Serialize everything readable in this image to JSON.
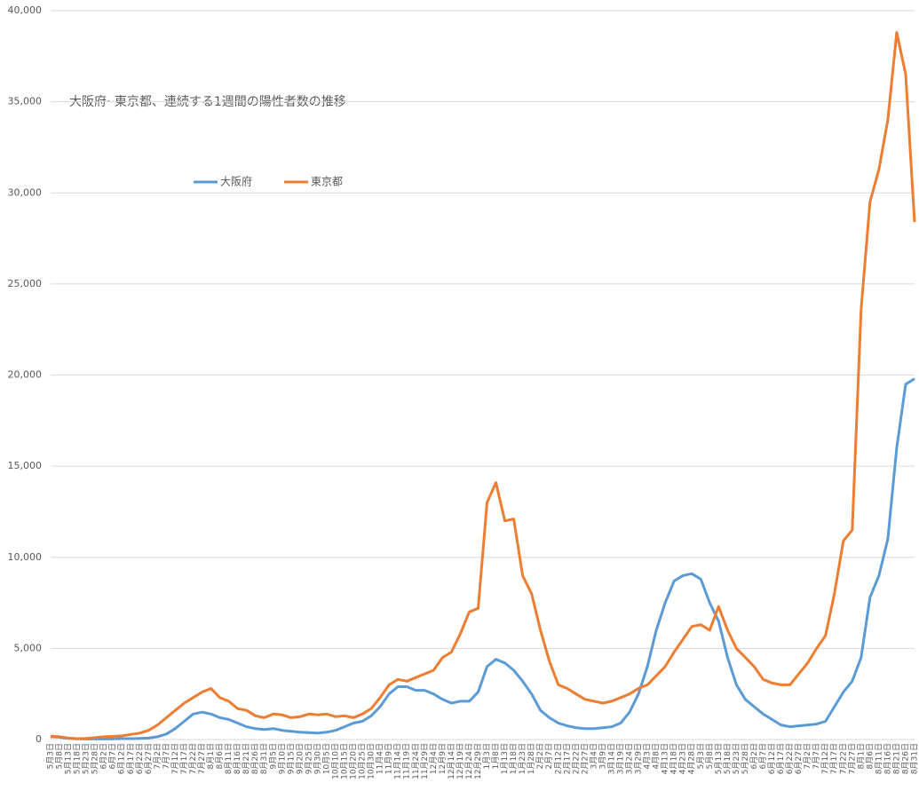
{
  "chart_data": {
    "type": "line",
    "title": "大阪府· 東京都、連続する1週間の陽性者数の推移",
    "categories": [
      "5月3日",
      "5月8日",
      "5月13日",
      "5月18日",
      "5月23日",
      "5月28日",
      "6月2日",
      "6月7日",
      "6月12日",
      "6月17日",
      "6月22日",
      "6月27日",
      "7月2日",
      "7月7日",
      "7月12日",
      "7月17日",
      "7月22日",
      "7月27日",
      "8月1日",
      "8月6日",
      "8月11日",
      "8月16日",
      "8月21日",
      "8月26日",
      "8月31日",
      "9月5日",
      "9月10日",
      "9月15日",
      "9月20日",
      "9月25日",
      "9月30日",
      "10月5日",
      "10月10日",
      "10月15日",
      "10月20日",
      "10月25日",
      "10月30日",
      "11月4日",
      "11月9日",
      "11月14日",
      "11月19日",
      "11月24日",
      "11月29日",
      "12月4日",
      "12月9日",
      "12月14日",
      "12月19日",
      "12月24日",
      "12月29日",
      "1月3日",
      "1月8日",
      "1月13日",
      "1月18日",
      "1月23日",
      "1月28日",
      "2月2日",
      "2月7日",
      "2月12日",
      "2月17日",
      "2月22日",
      "2月27日",
      "3月4日",
      "3月9日",
      "3月14日",
      "3月19日",
      "3月24日",
      "3月29日",
      "4月3日",
      "4月8日",
      "4月13日",
      "4月18日",
      "4月23日",
      "4月28日",
      "5月3日",
      "5月8日",
      "5月13日",
      "5月18日",
      "5月23日",
      "5月28日",
      "6月2日",
      "6月7日",
      "6月12日",
      "6月17日",
      "6月22日",
      "6月27日",
      "7月2日",
      "7月7日",
      "7月12日",
      "7月17日",
      "7月22日",
      "7月27日",
      "8月1日",
      "8月6日",
      "8月11日",
      "8月16日",
      "8月21日",
      "8月26日",
      "8月31日"
    ],
    "series": [
      {
        "name": "大阪府",
        "color": "#5b9bd5",
        "values": [
          150,
          120,
          60,
          40,
          30,
          30,
          30,
          40,
          50,
          50,
          60,
          80,
          150,
          300,
          600,
          1000,
          1400,
          1500,
          1400,
          1200,
          1100,
          900,
          700,
          600,
          550,
          600,
          500,
          450,
          400,
          380,
          350,
          400,
          500,
          700,
          900,
          1000,
          1300,
          1800,
          2500,
          2900,
          2900,
          2700,
          2700,
          2500,
          2200,
          2000,
          2100,
          2100,
          2600,
          4000,
          4400,
          4200,
          3800,
          3200,
          2500,
          1600,
          1200,
          900,
          750,
          650,
          600,
          600,
          650,
          700,
          900,
          1500,
          2500,
          4000,
          6000,
          7500,
          8700,
          9000,
          9100,
          8800,
          7500,
          6500,
          4500,
          3000,
          2200,
          1800,
          1400,
          1100,
          800,
          700,
          750,
          800,
          850,
          1000,
          1800,
          2600,
          3200,
          4500,
          7800,
          9000,
          11000,
          16000,
          19500,
          19800
        ]
      },
      {
        "name": "東京都",
        "color": "#ed7d31",
        "values": [
          180,
          150,
          80,
          50,
          60,
          100,
          150,
          170,
          200,
          280,
          350,
          500,
          800,
          1200,
          1600,
          2000,
          2300,
          2600,
          2800,
          2300,
          2100,
          1700,
          1600,
          1300,
          1200,
          1400,
          1350,
          1200,
          1250,
          1400,
          1350,
          1400,
          1250,
          1300,
          1200,
          1400,
          1700,
          2300,
          3000,
          3300,
          3200,
          3400,
          3600,
          3800,
          4500,
          4800,
          5800,
          7000,
          7200,
          13000,
          14100,
          12000,
          12100,
          9000,
          8000,
          6000,
          4300,
          3000,
          2800,
          2500,
          2200,
          2100,
          2000,
          2100,
          2300,
          2500,
          2800,
          3000,
          3500,
          4000,
          4800,
          5500,
          6200,
          6300,
          6000,
          7300,
          6000,
          5000,
          4500,
          4000,
          3300,
          3100,
          3000,
          3000,
          3600,
          4200,
          5000,
          5700,
          8000,
          10900,
          11500,
          23600,
          29500,
          31300,
          34000,
          38800,
          36500,
          28400
        ]
      }
    ],
    "ylim": [
      0,
      40000
    ],
    "yticks": [
      0,
      {
        "value": 5000,
        "label": "5,000"
      },
      {
        "value": 10000,
        "label": "10,000"
      },
      {
        "value": 15000,
        "label": "15,000"
      },
      {
        "value": 20000,
        "label": "20,000"
      },
      {
        "value": 25000,
        "label": "25,000"
      },
      {
        "value": 30000,
        "label": "30,000"
      },
      {
        "value": 35000,
        "label": "35,000"
      },
      {
        "value": 40000,
        "label": "40,000"
      }
    ],
    "grid": true
  }
}
